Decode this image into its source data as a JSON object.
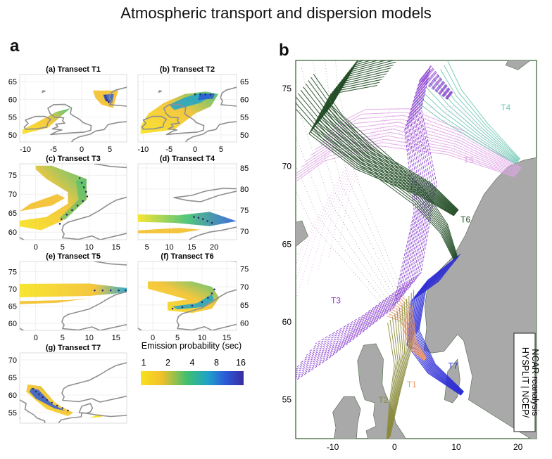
{
  "figure": {
    "title": "Atmospheric transport and dispersion models",
    "panel_a_label": "a",
    "panel_b_label": "b"
  },
  "colors": {
    "land": "#9e9e9e",
    "map_bg_b": "#f4f4f4",
    "t1": "#f29a6a",
    "t2": "#8a8a3a",
    "t3": "#8a3fcf",
    "t4": "#6fc8b4",
    "t5": "#e0a6e6",
    "t6": "#1f4a22",
    "t7": "#2a2ad6",
    "frame_b": "#2e5b2a"
  },
  "chart_data": [
    {
      "id": "a1",
      "type": "heatmap",
      "title": "(a)  Transect  T1",
      "xticks": [
        "-10",
        "-5",
        "0",
        "5"
      ],
      "yticks": [
        "50",
        "55",
        "60",
        "65"
      ],
      "ytick_side": "left",
      "xlim": [
        -11,
        8
      ],
      "ylim": [
        48,
        67
      ]
    },
    {
      "id": "a2",
      "type": "heatmap",
      "title": "(b)  Transect  T2",
      "xticks": [
        "-10",
        "-5",
        "0",
        "5"
      ],
      "yticks": [
        "50",
        "55",
        "60",
        "65"
      ],
      "ytick_side": "right",
      "xlim": [
        -11,
        8
      ],
      "ylim": [
        48,
        67
      ]
    },
    {
      "id": "a3",
      "type": "heatmap",
      "title": "(c)  Transect  T3",
      "xticks": [
        "0",
        "5",
        "10",
        "15"
      ],
      "yticks": [
        "60",
        "65",
        "70",
        "75"
      ],
      "ytick_side": "left",
      "xlim": [
        -3,
        17
      ],
      "ylim": [
        58,
        78
      ]
    },
    {
      "id": "a4",
      "type": "heatmap",
      "title": "(d)  Transect  T4",
      "xticks": [
        "5",
        "10",
        "15",
        "20"
      ],
      "yticks": [
        "70",
        "75",
        "80",
        "85"
      ],
      "ytick_side": "right",
      "xlim": [
        3,
        25
      ],
      "ylim": [
        68,
        86
      ]
    },
    {
      "id": "a5",
      "type": "heatmap",
      "title": "(e)  Transect  T5",
      "xticks": [
        "0",
        "5",
        "10",
        "15"
      ],
      "yticks": [
        "60",
        "65",
        "70",
        "75"
      ],
      "ytick_side": "left",
      "xlim": [
        -3,
        17
      ],
      "ylim": [
        58,
        78
      ]
    },
    {
      "id": "a6",
      "type": "heatmap",
      "title": "(f)  Transect  T6",
      "xticks": [
        "0",
        "5",
        "10",
        "15"
      ],
      "yticks": [
        "60",
        "65",
        "70",
        "75"
      ],
      "ytick_side": "right",
      "xlim": [
        -3,
        17
      ],
      "ylim": [
        58,
        77
      ]
    },
    {
      "id": "a7",
      "type": "heatmap",
      "title": "(g)  Transect  T7",
      "xticks": [],
      "yticks": [
        "55",
        "60",
        "65",
        "70"
      ],
      "ytick_side": "left",
      "xlim": [
        -3,
        17
      ],
      "ylim": [
        52,
        72
      ]
    },
    {
      "id": "colorbar",
      "type": "heatmap",
      "title": "Emission probability (sec)",
      "ticks": [
        "1",
        "2",
        "4",
        "8",
        "16"
      ],
      "colors": [
        "#f7e21b",
        "#f3c02a",
        "#3fbf6f",
        "#1fa3c9",
        "#2b5bd8",
        "#3a2ca0"
      ]
    },
    {
      "id": "b",
      "type": "line",
      "xticks": [
        "-10",
        "0",
        "10",
        "20"
      ],
      "yticks": [
        "55",
        "60",
        "65",
        "70",
        "75"
      ],
      "xlim": [
        -16,
        23
      ],
      "ylim": [
        52.5,
        76.8
      ],
      "series": [
        {
          "name": "T1"
        },
        {
          "name": "T2"
        },
        {
          "name": "T3"
        },
        {
          "name": "T4"
        },
        {
          "name": "T5"
        },
        {
          "name": "T6"
        },
        {
          "name": "T7"
        }
      ],
      "annotation": "HYSPLIT | NCEP/\nNCAR reanalysis"
    }
  ]
}
